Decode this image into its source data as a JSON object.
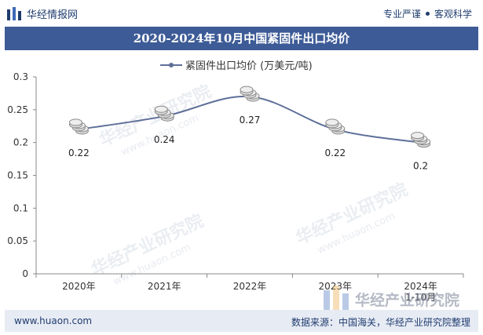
{
  "header": {
    "brand_name": "华经情报网",
    "slogan_left": "专业严谨",
    "slogan_right": "客观科学"
  },
  "watermark": {
    "text": "华经产业研究院",
    "url": "www.huaon.com"
  },
  "footer": {
    "url": "www.huaon.com",
    "source": "数据来源：中国海关，华经产业研究院整理"
  },
  "colors": {
    "title_bar": "#3d5b96",
    "series_line": "#5e6f99",
    "footer_bg": "#e7ebf4",
    "brand_text": "#1f3c6e"
  },
  "chart_data": {
    "type": "line",
    "title": "2020-2024年10月中国紧固件出口均价",
    "categories": [
      "2020年",
      "2021年",
      "2022年",
      "2023年",
      "2024年\n1-10月"
    ],
    "series": [
      {
        "name": "紧固件出口均价 (万美元/吨)",
        "values": [
          0.22,
          0.24,
          0.27,
          0.22,
          0.2
        ]
      }
    ],
    "data_labels": [
      "0.22",
      "0.24",
      "0.27",
      "0.22",
      "0.2"
    ],
    "ylim": [
      0,
      0.3
    ],
    "yticks": [
      "0",
      "0.05",
      "0.1",
      "0.15",
      "0.2",
      "0.25",
      "0.3"
    ],
    "grid": false,
    "smooth": true,
    "legend_position": "top-center"
  }
}
